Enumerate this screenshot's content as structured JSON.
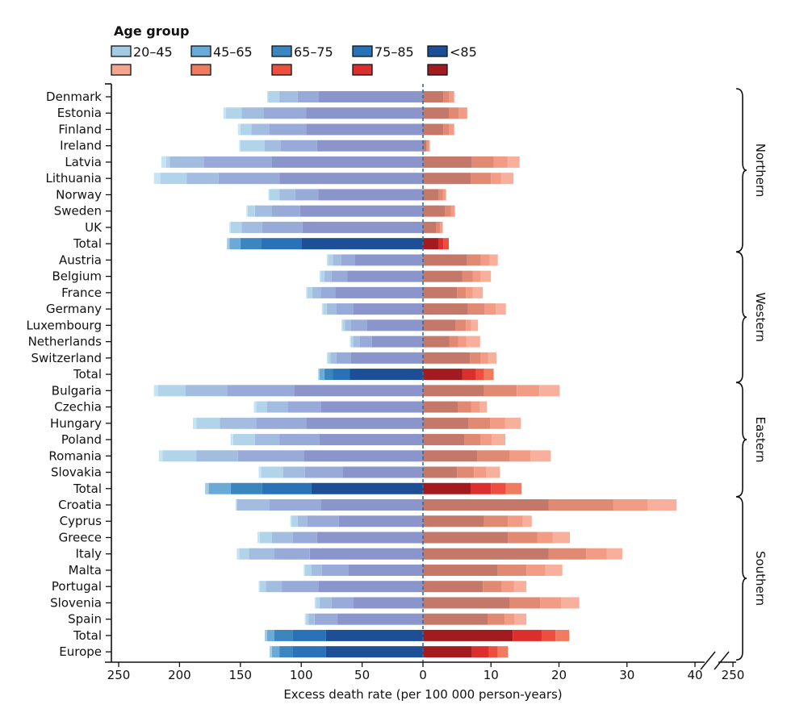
{
  "chart_data": {
    "type": "bar",
    "orientation": "horizontal",
    "stacked": true,
    "diverging": true,
    "legend": {
      "title": "Age group",
      "labels": [
        "20–45",
        "45–65",
        "65–75",
        "75–85",
        "<85"
      ],
      "blue_colors": [
        "#a3cbe4",
        "#6aaad7",
        "#3c86c0",
        "#2a72b8",
        "#1c4f96"
      ],
      "red_colors": [
        "#f5a58b",
        "#f07b5e",
        "#ee4e3f",
        "#dd2e2e",
        "#a31b1f"
      ]
    },
    "country_colors": {
      "blue": [
        "#c6e4f3",
        "#b2d4ea",
        "#a3bde0",
        "#97aad8",
        "#8a96cb"
      ],
      "red": [
        "#fbc9ba",
        "#f8b09c",
        "#f29c86",
        "#e08a74",
        "#c4786a"
      ]
    },
    "left_scale": {
      "ticks": [
        250,
        200,
        150,
        100,
        50,
        0
      ],
      "max": 250
    },
    "right_scale": {
      "ticks": [
        0,
        10,
        20,
        30,
        40
      ],
      "max": 40,
      "broken_axis_extra_tick": 250
    },
    "xlabel": "Excess death rate (per 100 000 person-years)",
    "rows": [
      {
        "name": "Denmark",
        "total": false,
        "left": [
          86,
          17,
          15,
          9,
          1
        ],
        "right": [
          3.0,
          0.8,
          0.8
        ]
      },
      {
        "name": "Estonia",
        "total": false,
        "left": [
          96,
          35,
          18,
          13,
          2
        ],
        "right": [
          3.8,
          1.5,
          1.2
        ]
      },
      {
        "name": "Finland",
        "total": false,
        "left": [
          96,
          30,
          15,
          9,
          2
        ],
        "right": [
          3.0,
          0.8,
          0.8
        ]
      },
      {
        "name": "Ireland",
        "total": false,
        "left": [
          87,
          30,
          13,
          20,
          1
        ],
        "right": [
          0.5,
          0.2,
          0.3
        ]
      },
      {
        "name": "Latvia",
        "total": false,
        "left": [
          124,
          56,
          28,
          3,
          4
        ],
        "right": [
          7.2,
          3.2,
          2.0,
          1.8
        ]
      },
      {
        "name": "Lithuania",
        "total": false,
        "left": [
          118,
          50,
          26,
          22,
          5
        ],
        "right": [
          7.0,
          3.0,
          1.5,
          1.8
        ]
      },
      {
        "name": "Norway",
        "total": false,
        "left": [
          86,
          19,
          13,
          8,
          1
        ],
        "right": [
          2.3,
          0.6,
          0.5
        ]
      },
      {
        "name": "Sweden",
        "total": false,
        "left": [
          101,
          23,
          14,
          6,
          1
        ],
        "right": [
          3.2,
          0.9,
          0.6
        ]
      },
      {
        "name": "UK",
        "total": false,
        "left": [
          99,
          33,
          17,
          9,
          1
        ],
        "right": [
          1.9,
          0.6,
          0.4
        ]
      },
      {
        "name": "Total",
        "total": true,
        "left": [
          100,
          33,
          17,
          9,
          2
        ],
        "right": [
          2.3,
          0.7,
          0.8
        ]
      },
      {
        "name": "Austria",
        "total": false,
        "left": [
          56,
          11,
          7,
          4,
          1
        ],
        "right": [
          6.5,
          2.0,
          1.3,
          1.2
        ]
      },
      {
        "name": "Belgium",
        "total": false,
        "left": [
          62,
          13,
          6,
          3,
          1
        ],
        "right": [
          5.8,
          1.5,
          1.2,
          1.5
        ]
      },
      {
        "name": "France",
        "total": false,
        "left": [
          72,
          12,
          7,
          4,
          1
        ],
        "right": [
          5.0,
          1.3,
          1.0,
          1.5
        ]
      },
      {
        "name": "Germany",
        "total": false,
        "left": [
          57,
          14,
          8,
          3,
          1
        ],
        "right": [
          6.6,
          2.5,
          1.6,
          1.5
        ]
      },
      {
        "name": "Luxembourg",
        "total": false,
        "left": [
          46,
          13,
          5,
          2,
          1
        ],
        "right": [
          4.8,
          1.5,
          0.8,
          1.0
        ]
      },
      {
        "name": "Netherlands",
        "total": false,
        "left": [
          42,
          10,
          5,
          2,
          1
        ],
        "right": [
          3.9,
          1.3,
          1.2,
          2.0
        ]
      },
      {
        "name": "Switzerland",
        "total": false,
        "left": [
          59,
          12,
          5,
          2,
          1
        ],
        "right": [
          6.9,
          1.6,
          1.1,
          1.2
        ]
      },
      {
        "name": "Total",
        "total": true,
        "left": [
          60,
          14,
          7,
          4,
          1
        ],
        "right": [
          5.8,
          2.0,
          1.2,
          1.4
        ]
      },
      {
        "name": "Bulgaria",
        "total": false,
        "left": [
          106,
          55,
          34,
          23,
          3
        ],
        "right": [
          9.0,
          4.8,
          3.3,
          3.0
        ]
      },
      {
        "name": "Czechia",
        "total": false,
        "left": [
          84,
          27,
          17,
          9,
          2
        ],
        "right": [
          5.1,
          2.0,
          1.3,
          1.0
        ]
      },
      {
        "name": "Hungary",
        "total": false,
        "left": [
          96,
          41,
          30,
          19,
          3
        ],
        "right": [
          6.7,
          3.2,
          2.2,
          2.3
        ]
      },
      {
        "name": "Poland",
        "total": false,
        "left": [
          85,
          33,
          20,
          18,
          2
        ],
        "right": [
          6.1,
          2.4,
          1.6,
          2.0
        ]
      },
      {
        "name": "Romania",
        "total": false,
        "left": [
          98,
          54,
          34,
          28,
          3
        ],
        "right": [
          8.0,
          4.8,
          3.0,
          3.0
        ]
      },
      {
        "name": "Slovakia",
        "total": false,
        "left": [
          66,
          31,
          18,
          18,
          2
        ],
        "right": [
          5.0,
          2.5,
          1.8,
          2.0
        ]
      },
      {
        "name": "Total",
        "total": true,
        "left": [
          92,
          40,
          26,
          18,
          3
        ],
        "right": [
          7.0,
          3.0,
          2.2,
          2.3
        ]
      },
      {
        "name": "Croatia",
        "total": false,
        "left": [
          84,
          42,
          27,
          0,
          1
        ],
        "right": [
          18.5,
          9.5,
          5.0,
          4.3
        ]
      },
      {
        "name": "Cyprus",
        "total": false,
        "left": [
          69,
          26,
          8,
          5,
          1
        ],
        "right": [
          9.0,
          3.5,
          2.2,
          1.3
        ]
      },
      {
        "name": "Greece",
        "total": false,
        "left": [
          87,
          20,
          17,
          10,
          2
        ],
        "right": [
          12.5,
          4.3,
          2.3,
          2.5
        ]
      },
      {
        "name": "Italy",
        "total": false,
        "left": [
          93,
          29,
          21,
          8,
          2
        ],
        "right": [
          18.5,
          5.5,
          3.0,
          2.3
        ]
      },
      {
        "name": "Malta",
        "total": false,
        "left": [
          61,
          22,
          9,
          5,
          1
        ],
        "right": [
          11.0,
          4.2,
          2.8,
          2.5
        ]
      },
      {
        "name": "Portugal",
        "total": false,
        "left": [
          86,
          30,
          13,
          5,
          1
        ],
        "right": [
          8.8,
          2.8,
          1.8,
          1.8
        ]
      },
      {
        "name": "Slovenia",
        "total": false,
        "left": [
          57,
          18,
          10,
          3,
          1
        ],
        "right": [
          12.8,
          4.5,
          3.0,
          2.7
        ]
      },
      {
        "name": "Spain",
        "total": false,
        "left": [
          70,
          19,
          5,
          2,
          1
        ],
        "right": [
          9.5,
          2.5,
          1.5,
          1.7
        ]
      },
      {
        "name": "Total",
        "total": true,
        "left": [
          80,
          27,
          15,
          6,
          2
        ],
        "right": [
          13.2,
          4.3,
          2.0,
          2.0
        ]
      },
      {
        "name": "Europe",
        "total": true,
        "left": [
          80,
          27,
          11,
          6,
          2
        ],
        "right": [
          7.2,
          2.5,
          1.3,
          1.5
        ]
      }
    ],
    "regions": [
      {
        "name": "Northern",
        "from": 0,
        "to": 9
      },
      {
        "name": "Western",
        "from": 10,
        "to": 17
      },
      {
        "name": "Eastern",
        "from": 18,
        "to": 24
      },
      {
        "name": "Southern",
        "from": 25,
        "to": 34
      }
    ]
  }
}
